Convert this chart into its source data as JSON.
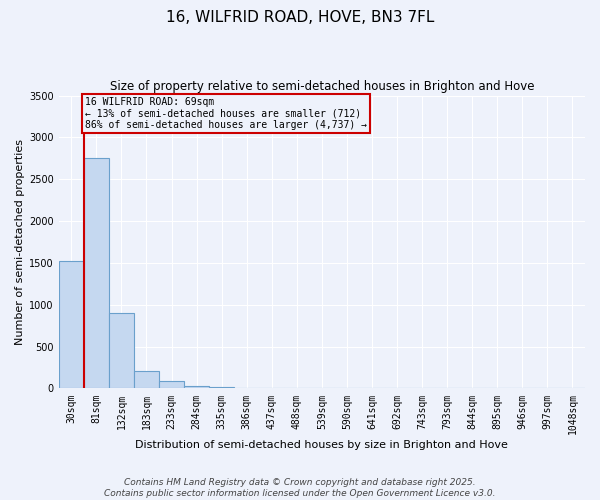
{
  "title": "16, WILFRID ROAD, HOVE, BN3 7FL",
  "subtitle": "Size of property relative to semi-detached houses in Brighton and Hove",
  "xlabel": "Distribution of semi-detached houses by size in Brighton and Hove",
  "ylabel": "Number of semi-detached properties",
  "bins": [
    "30sqm",
    "81sqm",
    "132sqm",
    "183sqm",
    "233sqm",
    "284sqm",
    "335sqm",
    "386sqm",
    "437sqm",
    "488sqm",
    "539sqm",
    "590sqm",
    "641sqm",
    "692sqm",
    "743sqm",
    "793sqm",
    "844sqm",
    "895sqm",
    "946sqm",
    "997sqm",
    "1048sqm"
  ],
  "values": [
    1520,
    2750,
    900,
    205,
    95,
    30,
    18,
    5,
    0,
    0,
    0,
    0,
    0,
    0,
    0,
    0,
    0,
    0,
    0,
    0,
    0
  ],
  "bar_color": "#c5d8f0",
  "bar_edge_color": "#6aa0cc",
  "property_line_color": "#cc0000",
  "annotation_text": "16 WILFRID ROAD: 69sqm\n← 13% of semi-detached houses are smaller (712)\n86% of semi-detached houses are larger (4,737) →",
  "annotation_box_color": "#cc0000",
  "ylim": [
    0,
    3500
  ],
  "footer1": "Contains HM Land Registry data © Crown copyright and database right 2025.",
  "footer2": "Contains public sector information licensed under the Open Government Licence v3.0.",
  "background_color": "#eef2fb",
  "grid_color": "#ffffff",
  "title_fontsize": 11,
  "subtitle_fontsize": 8.5,
  "tick_fontsize": 7,
  "ylabel_fontsize": 8,
  "xlabel_fontsize": 8,
  "footer_fontsize": 6.5
}
